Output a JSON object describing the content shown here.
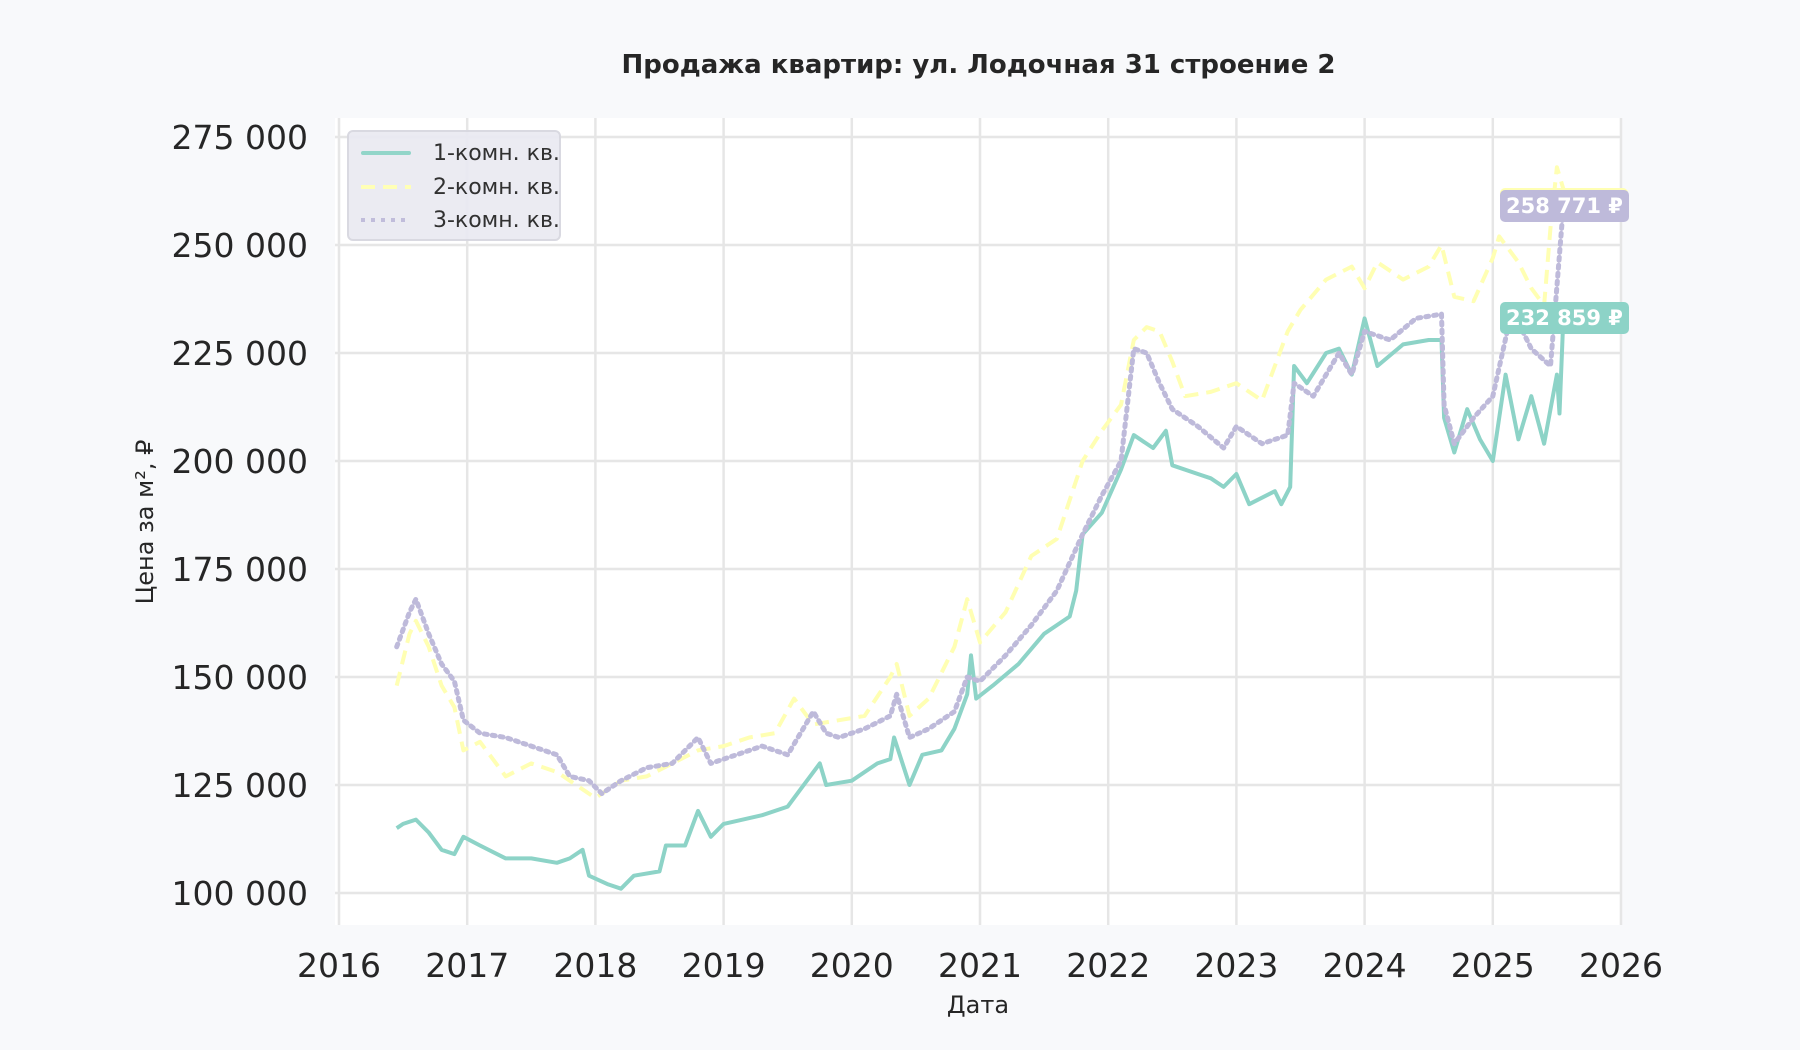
{
  "chart_data": {
    "type": "line",
    "title": "Продажа квартир: ул. Лодочная 31 строение 2",
    "xlabel": "Дата",
    "ylabel": "Цена за м², ₽",
    "xlim": [
      2016,
      2026
    ],
    "ylim": [
      96500,
      278000
    ],
    "x_ticks": [
      "2016",
      "2017",
      "2018",
      "2019",
      "2020",
      "2021",
      "2022",
      "2023",
      "2024",
      "2025",
      "2026"
    ],
    "y_ticks": [
      "100 000",
      "125 000",
      "150 000",
      "175 000",
      "200 000",
      "225 000",
      "250 000",
      "275 000"
    ],
    "y_tick_values": [
      100000,
      125000,
      150000,
      175000,
      200000,
      225000,
      250000,
      275000
    ],
    "grid": true,
    "legend_position": "upper left",
    "series": [
      {
        "name": "1-комн. кв.",
        "color": "#8dd3c7",
        "style": "solid",
        "points": [
          [
            2016.45,
            115000
          ],
          [
            2016.5,
            116000
          ],
          [
            2016.6,
            117000
          ],
          [
            2016.7,
            114000
          ],
          [
            2016.8,
            110000
          ],
          [
            2016.9,
            109000
          ],
          [
            2016.97,
            113000
          ],
          [
            2017.1,
            111000
          ],
          [
            2017.3,
            108000
          ],
          [
            2017.5,
            108000
          ],
          [
            2017.7,
            107000
          ],
          [
            2017.8,
            108000
          ],
          [
            2017.9,
            110000
          ],
          [
            2017.95,
            104000
          ],
          [
            2018.1,
            102000
          ],
          [
            2018.2,
            101000
          ],
          [
            2018.3,
            104000
          ],
          [
            2018.5,
            105000
          ],
          [
            2018.55,
            111000
          ],
          [
            2018.7,
            111000
          ],
          [
            2018.8,
            119000
          ],
          [
            2018.9,
            113000
          ],
          [
            2019.0,
            116000
          ],
          [
            2019.3,
            118000
          ],
          [
            2019.5,
            120000
          ],
          [
            2019.6,
            124000
          ],
          [
            2019.75,
            130000
          ],
          [
            2019.8,
            125000
          ],
          [
            2020.0,
            126000
          ],
          [
            2020.2,
            130000
          ],
          [
            2020.3,
            131000
          ],
          [
            2020.33,
            136000
          ],
          [
            2020.45,
            125000
          ],
          [
            2020.55,
            132000
          ],
          [
            2020.7,
            133000
          ],
          [
            2020.8,
            138000
          ],
          [
            2020.9,
            146000
          ],
          [
            2020.93,
            155000
          ],
          [
            2020.97,
            145000
          ],
          [
            2021.1,
            148000
          ],
          [
            2021.3,
            153000
          ],
          [
            2021.5,
            160000
          ],
          [
            2021.7,
            164000
          ],
          [
            2021.75,
            170000
          ],
          [
            2021.8,
            183000
          ],
          [
            2021.95,
            188000
          ],
          [
            2022.1,
            198000
          ],
          [
            2022.2,
            206000
          ],
          [
            2022.35,
            203000
          ],
          [
            2022.45,
            207000
          ],
          [
            2022.5,
            199000
          ],
          [
            2022.7,
            197000
          ],
          [
            2022.8,
            196000
          ],
          [
            2022.9,
            194000
          ],
          [
            2023.0,
            197000
          ],
          [
            2023.1,
            190000
          ],
          [
            2023.3,
            193000
          ],
          [
            2023.35,
            190000
          ],
          [
            2023.42,
            194000
          ],
          [
            2023.45,
            222000
          ],
          [
            2023.55,
            218000
          ],
          [
            2023.7,
            225000
          ],
          [
            2023.8,
            226000
          ],
          [
            2023.9,
            220000
          ],
          [
            2024.0,
            233000
          ],
          [
            2024.1,
            222000
          ],
          [
            2024.3,
            227000
          ],
          [
            2024.5,
            228000
          ],
          [
            2024.6,
            228000
          ],
          [
            2024.62,
            210000
          ],
          [
            2024.7,
            202000
          ],
          [
            2024.8,
            212000
          ],
          [
            2024.9,
            205000
          ],
          [
            2025.0,
            200000
          ],
          [
            2025.1,
            220000
          ],
          [
            2025.2,
            205000
          ],
          [
            2025.3,
            215000
          ],
          [
            2025.4,
            204000
          ],
          [
            2025.5,
            220000
          ],
          [
            2025.52,
            211000
          ],
          [
            2025.55,
            232859
          ]
        ],
        "last_value_label": "232 859 ₽"
      },
      {
        "name": "2-комн. кв.",
        "color": "#ffffb3",
        "style": "dashed",
        "points": [
          [
            2016.45,
            148000
          ],
          [
            2016.55,
            160000
          ],
          [
            2016.6,
            163000
          ],
          [
            2016.7,
            157000
          ],
          [
            2016.8,
            148000
          ],
          [
            2016.9,
            143000
          ],
          [
            2016.97,
            133000
          ],
          [
            2017.1,
            135000
          ],
          [
            2017.3,
            127000
          ],
          [
            2017.5,
            130000
          ],
          [
            2017.7,
            128000
          ],
          [
            2017.9,
            124000
          ],
          [
            2018.0,
            122000
          ],
          [
            2018.2,
            126000
          ],
          [
            2018.4,
            127000
          ],
          [
            2018.6,
            130000
          ],
          [
            2018.8,
            133000
          ],
          [
            2019.0,
            134000
          ],
          [
            2019.2,
            136000
          ],
          [
            2019.4,
            137000
          ],
          [
            2019.55,
            145000
          ],
          [
            2019.7,
            139000
          ],
          [
            2019.9,
            140000
          ],
          [
            2020.1,
            141000
          ],
          [
            2020.3,
            150000
          ],
          [
            2020.35,
            153000
          ],
          [
            2020.45,
            141000
          ],
          [
            2020.6,
            145000
          ],
          [
            2020.8,
            157000
          ],
          [
            2020.9,
            168000
          ],
          [
            2021.0,
            158000
          ],
          [
            2021.2,
            165000
          ],
          [
            2021.4,
            178000
          ],
          [
            2021.6,
            182000
          ],
          [
            2021.8,
            200000
          ],
          [
            2021.95,
            207000
          ],
          [
            2022.1,
            213000
          ],
          [
            2022.2,
            228000
          ],
          [
            2022.3,
            231000
          ],
          [
            2022.4,
            230000
          ],
          [
            2022.5,
            223000
          ],
          [
            2022.6,
            215000
          ],
          [
            2022.8,
            216000
          ],
          [
            2023.0,
            218000
          ],
          [
            2023.2,
            214000
          ],
          [
            2023.4,
            230000
          ],
          [
            2023.5,
            235000
          ],
          [
            2023.7,
            242000
          ],
          [
            2023.9,
            245000
          ],
          [
            2024.0,
            240000
          ],
          [
            2024.1,
            246000
          ],
          [
            2024.3,
            242000
          ],
          [
            2024.5,
            245000
          ],
          [
            2024.6,
            250000
          ],
          [
            2024.7,
            238000
          ],
          [
            2024.85,
            237000
          ],
          [
            2025.0,
            247000
          ],
          [
            2025.05,
            252000
          ],
          [
            2025.2,
            246000
          ],
          [
            2025.3,
            240000
          ],
          [
            2025.4,
            236000
          ],
          [
            2025.45,
            254000
          ],
          [
            2025.5,
            268000
          ],
          [
            2025.55,
            263000
          ]
        ],
        "last_value_label": ""
      },
      {
        "name": "3-комн. кв.",
        "color": "#bebada",
        "style": "dotted",
        "points": [
          [
            2016.45,
            157000
          ],
          [
            2016.55,
            165000
          ],
          [
            2016.6,
            168000
          ],
          [
            2016.7,
            160000
          ],
          [
            2016.8,
            153000
          ],
          [
            2016.9,
            149000
          ],
          [
            2016.97,
            140000
          ],
          [
            2017.1,
            137000
          ],
          [
            2017.3,
            136000
          ],
          [
            2017.5,
            134000
          ],
          [
            2017.7,
            132000
          ],
          [
            2017.8,
            127000
          ],
          [
            2017.95,
            126000
          ],
          [
            2018.05,
            123000
          ],
          [
            2018.2,
            126000
          ],
          [
            2018.4,
            129000
          ],
          [
            2018.6,
            130000
          ],
          [
            2018.8,
            136000
          ],
          [
            2018.9,
            130000
          ],
          [
            2019.1,
            132000
          ],
          [
            2019.3,
            134000
          ],
          [
            2019.5,
            132000
          ],
          [
            2019.6,
            137000
          ],
          [
            2019.7,
            142000
          ],
          [
            2019.8,
            137000
          ],
          [
            2019.9,
            136000
          ],
          [
            2020.1,
            138000
          ],
          [
            2020.3,
            141000
          ],
          [
            2020.35,
            146000
          ],
          [
            2020.45,
            136000
          ],
          [
            2020.6,
            138000
          ],
          [
            2020.8,
            142000
          ],
          [
            2020.9,
            150000
          ],
          [
            2021.0,
            149000
          ],
          [
            2021.2,
            155000
          ],
          [
            2021.4,
            162000
          ],
          [
            2021.6,
            170000
          ],
          [
            2021.8,
            183000
          ],
          [
            2021.95,
            192000
          ],
          [
            2022.1,
            200000
          ],
          [
            2022.2,
            226000
          ],
          [
            2022.3,
            225000
          ],
          [
            2022.4,
            218000
          ],
          [
            2022.5,
            212000
          ],
          [
            2022.7,
            208000
          ],
          [
            2022.9,
            203000
          ],
          [
            2023.0,
            208000
          ],
          [
            2023.2,
            204000
          ],
          [
            2023.4,
            206000
          ],
          [
            2023.45,
            218000
          ],
          [
            2023.6,
            215000
          ],
          [
            2023.8,
            225000
          ],
          [
            2023.9,
            220000
          ],
          [
            2024.0,
            230000
          ],
          [
            2024.2,
            228000
          ],
          [
            2024.4,
            233000
          ],
          [
            2024.6,
            234000
          ],
          [
            2024.62,
            213000
          ],
          [
            2024.7,
            204000
          ],
          [
            2024.85,
            210000
          ],
          [
            2025.0,
            215000
          ],
          [
            2025.15,
            235000
          ],
          [
            2025.3,
            226000
          ],
          [
            2025.45,
            222000
          ],
          [
            2025.55,
            258771
          ]
        ],
        "last_value_label": "258 771 ₽"
      }
    ],
    "annotations": [
      {
        "text": "258 771 ₽",
        "color": "#bebada",
        "series": "3-комн. кв."
      },
      {
        "text": "232 859 ₽",
        "color": "#8dd3c7",
        "series": "1-комн. кв."
      }
    ]
  }
}
